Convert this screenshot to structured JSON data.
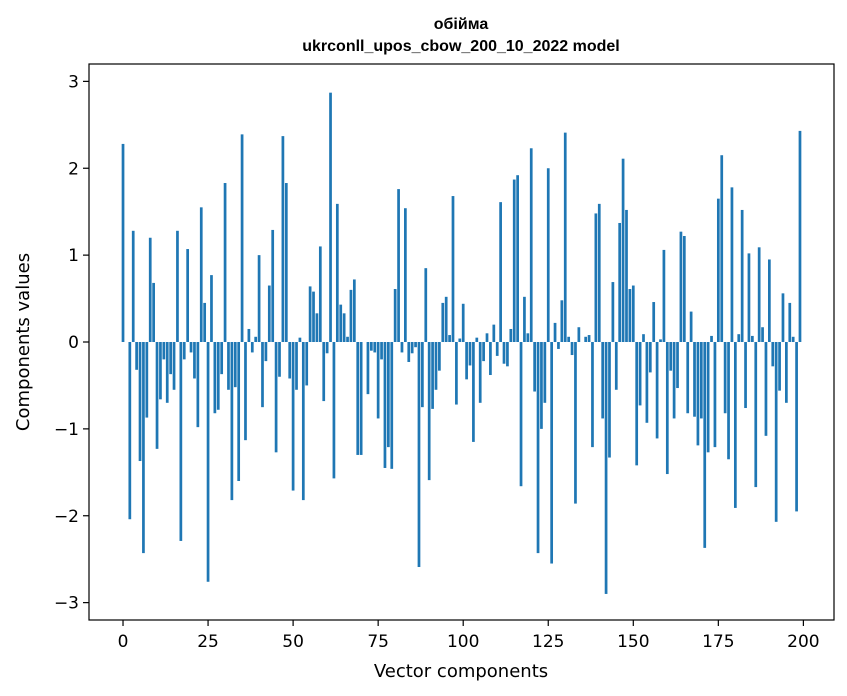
{
  "chart_data": {
    "type": "bar",
    "title": "обійма",
    "subtitle": "ukrconll_upos_cbow_200_10_2022 model",
    "xlabel": "Vector components",
    "ylabel": "Components values",
    "xlim": [
      -10,
      209
    ],
    "ylim": [
      -3.2,
      3.2
    ],
    "xticks": [
      0,
      25,
      50,
      75,
      100,
      125,
      150,
      175,
      200
    ],
    "yticks": [
      -3,
      -2,
      -1,
      0,
      1,
      2,
      3
    ],
    "xtick_labels": [
      "0",
      "25",
      "50",
      "75",
      "100",
      "125",
      "150",
      "175",
      "200"
    ],
    "ytick_labels": [
      "−3",
      "−2",
      "−1",
      "0",
      "1",
      "2",
      "3"
    ],
    "bar_color": "#1f77b4",
    "grid": false,
    "x": [
      0,
      1,
      2,
      3,
      4,
      5,
      6,
      7,
      8,
      9,
      10,
      11,
      12,
      13,
      14,
      15,
      16,
      17,
      18,
      19,
      20,
      21,
      22,
      23,
      24,
      25,
      26,
      27,
      28,
      29,
      30,
      31,
      32,
      33,
      34,
      35,
      36,
      37,
      38,
      39,
      40,
      41,
      42,
      43,
      44,
      45,
      46,
      47,
      48,
      49,
      50,
      51,
      52,
      53,
      54,
      55,
      56,
      57,
      58,
      59,
      60,
      61,
      62,
      63,
      64,
      65,
      66,
      67,
      68,
      69,
      70,
      71,
      72,
      73,
      74,
      75,
      76,
      77,
      78,
      79,
      80,
      81,
      82,
      83,
      84,
      85,
      86,
      87,
      88,
      89,
      90,
      91,
      92,
      93,
      94,
      95,
      96,
      97,
      98,
      99,
      100,
      101,
      102,
      103,
      104,
      105,
      106,
      107,
      108,
      109,
      110,
      111,
      112,
      113,
      114,
      115,
      116,
      117,
      118,
      119,
      120,
      121,
      122,
      123,
      124,
      125,
      126,
      127,
      128,
      129,
      130,
      131,
      132,
      133,
      134,
      135,
      136,
      137,
      138,
      139,
      140,
      141,
      142,
      143,
      144,
      145,
      146,
      147,
      148,
      149,
      150,
      151,
      152,
      153,
      154,
      155,
      156,
      157,
      158,
      159,
      160,
      161,
      162,
      163,
      164,
      165,
      166,
      167,
      168,
      169,
      170,
      171,
      172,
      173,
      174,
      175,
      176,
      177,
      178,
      179,
      180,
      181,
      182,
      183,
      184,
      185,
      186,
      187,
      188,
      189,
      190,
      191,
      192,
      193,
      194,
      195,
      196,
      197,
      198,
      199
    ],
    "values": [
      2.28,
      0,
      -2.04,
      1.28,
      -0.32,
      -1.37,
      -2.43,
      -0.87,
      1.2,
      0.68,
      -1.23,
      -0.66,
      -0.2,
      -0.7,
      -0.37,
      -0.55,
      1.28,
      -2.29,
      -0.2,
      1.07,
      -0.12,
      -0.42,
      -0.98,
      1.55,
      0.45,
      -2.76,
      0.77,
      -0.82,
      -0.78,
      -0.37,
      1.83,
      -0.55,
      -1.82,
      -0.52,
      -1.6,
      2.39,
      -1.13,
      0.15,
      -0.12,
      0.06,
      1.0,
      -0.75,
      -0.22,
      0.65,
      1.29,
      -1.27,
      -0.4,
      2.37,
      1.83,
      -0.42,
      -1.71,
      -0.55,
      0.05,
      -1.82,
      -0.5,
      0.64,
      0.58,
      0.33,
      1.1,
      -0.68,
      -0.13,
      2.87,
      -1.57,
      1.59,
      0.43,
      0.33,
      0.06,
      0.6,
      0.72,
      -1.3,
      -1.3,
      0.0,
      -0.6,
      -0.1,
      -0.12,
      -0.88,
      -0.2,
      -1.45,
      -1.21,
      -1.46,
      0.61,
      1.76,
      -0.12,
      1.54,
      -0.23,
      -0.13,
      -0.06,
      -2.59,
      -0.75,
      0.85,
      -1.59,
      -0.77,
      -0.55,
      -0.33,
      0.45,
      0.52,
      0.08,
      1.68,
      -0.72,
      0.04,
      0.44,
      -0.43,
      -0.27,
      -1.15,
      0.05,
      -0.7,
      -0.22,
      0.1,
      -0.38,
      0.2,
      -0.16,
      1.61,
      -0.25,
      -0.28,
      0.15,
      1.87,
      1.92,
      -1.66,
      0.52,
      0.1,
      2.23,
      -0.57,
      -2.43,
      -1.0,
      -0.7,
      2.0,
      -2.55,
      0.22,
      -0.08,
      0.48,
      2.41,
      0.06,
      -0.15,
      -1.86,
      0.17,
      0.0,
      0.06,
      0.08,
      -1.21,
      1.48,
      1.59,
      -0.88,
      -2.9,
      -1.33,
      0.69,
      -0.55,
      1.37,
      2.11,
      1.52,
      0.61,
      0.65,
      -1.42,
      -0.73,
      0.09,
      -0.93,
      -0.35,
      0.46,
      -1.11,
      0.03,
      1.06,
      -1.52,
      -0.33,
      -0.88,
      -0.53,
      1.27,
      1.22,
      -0.82,
      0.35,
      -0.86,
      -1.19,
      -0.88,
      -2.37,
      -1.27,
      0.07,
      -1.21,
      1.65,
      2.15,
      -0.82,
      -1.35,
      1.78,
      -1.91,
      0.09,
      1.52,
      -0.76,
      1.02,
      0.07,
      -1.67,
      1.09,
      0.17,
      -1.08,
      0.95,
      -0.28,
      -2.07,
      -0.56,
      0.56,
      -0.7,
      0.45,
      0.06,
      -1.95,
      2.43
    ]
  }
}
